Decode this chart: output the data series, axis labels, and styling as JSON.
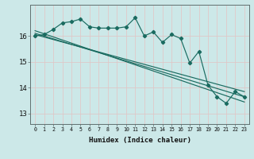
{
  "title": "",
  "xlabel": "Humidex (Indice chaleur)",
  "ylabel": "",
  "bg_color": "#cce8e8",
  "line_color": "#1a6b60",
  "grid_color": "#e8c8c8",
  "grid_color2": "#ffffff",
  "xlim": [
    -0.5,
    23.5
  ],
  "ylim": [
    12.6,
    17.2
  ],
  "xticks": [
    0,
    1,
    2,
    3,
    4,
    5,
    6,
    7,
    8,
    9,
    10,
    11,
    12,
    13,
    14,
    15,
    16,
    17,
    18,
    19,
    20,
    21,
    22,
    23
  ],
  "yticks": [
    13,
    14,
    15,
    16
  ],
  "main_line": [
    [
      0,
      16.0
    ],
    [
      1,
      16.05
    ],
    [
      2,
      16.25
    ],
    [
      3,
      16.5
    ],
    [
      4,
      16.55
    ],
    [
      5,
      16.65
    ],
    [
      6,
      16.35
    ],
    [
      7,
      16.3
    ],
    [
      8,
      16.3
    ],
    [
      9,
      16.3
    ],
    [
      10,
      16.35
    ],
    [
      11,
      16.7
    ],
    [
      12,
      16.0
    ],
    [
      13,
      16.15
    ],
    [
      14,
      15.75
    ],
    [
      15,
      16.05
    ],
    [
      16,
      15.9
    ],
    [
      17,
      14.95
    ],
    [
      18,
      15.4
    ],
    [
      19,
      14.1
    ],
    [
      20,
      13.65
    ],
    [
      21,
      13.4
    ],
    [
      22,
      13.85
    ],
    [
      23,
      13.65
    ]
  ],
  "smooth_line1": [
    [
      0,
      16.05
    ],
    [
      23,
      13.85
    ]
  ],
  "smooth_line2": [
    [
      0,
      16.1
    ],
    [
      23,
      13.65
    ]
  ],
  "smooth_line3": [
    [
      0,
      16.2
    ],
    [
      23,
      13.45
    ]
  ]
}
